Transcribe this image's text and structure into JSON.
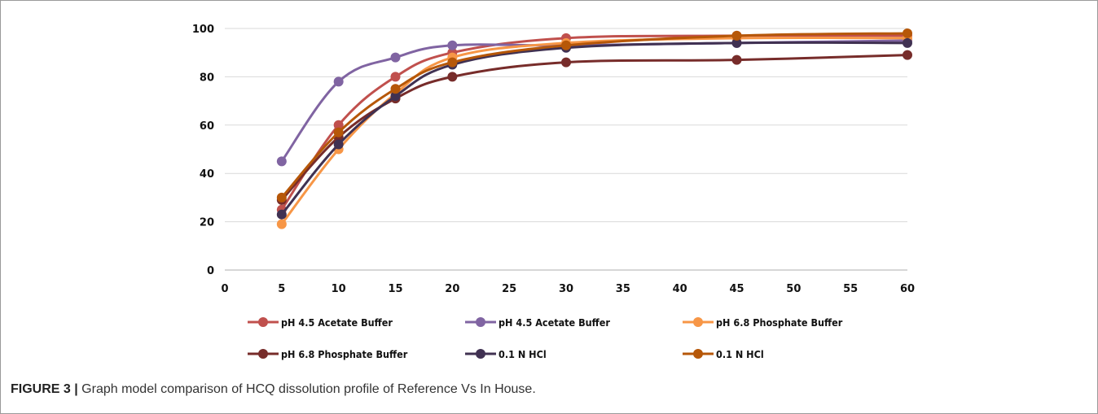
{
  "chart_data": {
    "type": "line",
    "x": [
      5,
      10,
      15,
      20,
      30,
      45,
      60
    ],
    "xlim": [
      0,
      60
    ],
    "ylim": [
      0,
      100
    ],
    "x_ticks": [
      "0",
      "5",
      "10",
      "15",
      "20",
      "25",
      "30",
      "35",
      "40",
      "45",
      "50",
      "55",
      "60"
    ],
    "y_ticks": [
      "0",
      "20",
      "40",
      "60",
      "80",
      "100"
    ],
    "grid": "horizontal",
    "legend_position": "bottom",
    "series": [
      {
        "name": "pH 4.5 Acetate Buffer",
        "color": "#c0504d",
        "values": [
          25,
          60,
          80,
          90,
          96,
          97,
          97
        ]
      },
      {
        "name": "pH 4.5 Acetate Buffer",
        "color": "#8064a2",
        "values": [
          45,
          78,
          88,
          93,
          93,
          94,
          95
        ]
      },
      {
        "name": "pH 6.8 Phosphate Buffer",
        "color": "#f79646",
        "values": [
          19,
          50,
          73,
          88,
          94,
          96,
          96
        ]
      },
      {
        "name": "pH 6.8 Phosphate Buffer",
        "color": "#772c2a",
        "values": [
          29,
          55,
          71,
          80,
          86,
          87,
          89
        ]
      },
      {
        "name": "0.1 N HCl",
        "color": "#403152",
        "values": [
          23,
          52,
          72,
          85,
          92,
          94,
          94
        ]
      },
      {
        "name": "0.1 N HCl",
        "color": "#b65708",
        "values": [
          30,
          57,
          75,
          86,
          93,
          97,
          98
        ]
      }
    ]
  },
  "caption": {
    "label": "FIGURE 3 |",
    "text": " Graph model comparison of HCQ dissolution profile of Reference Vs In House."
  }
}
